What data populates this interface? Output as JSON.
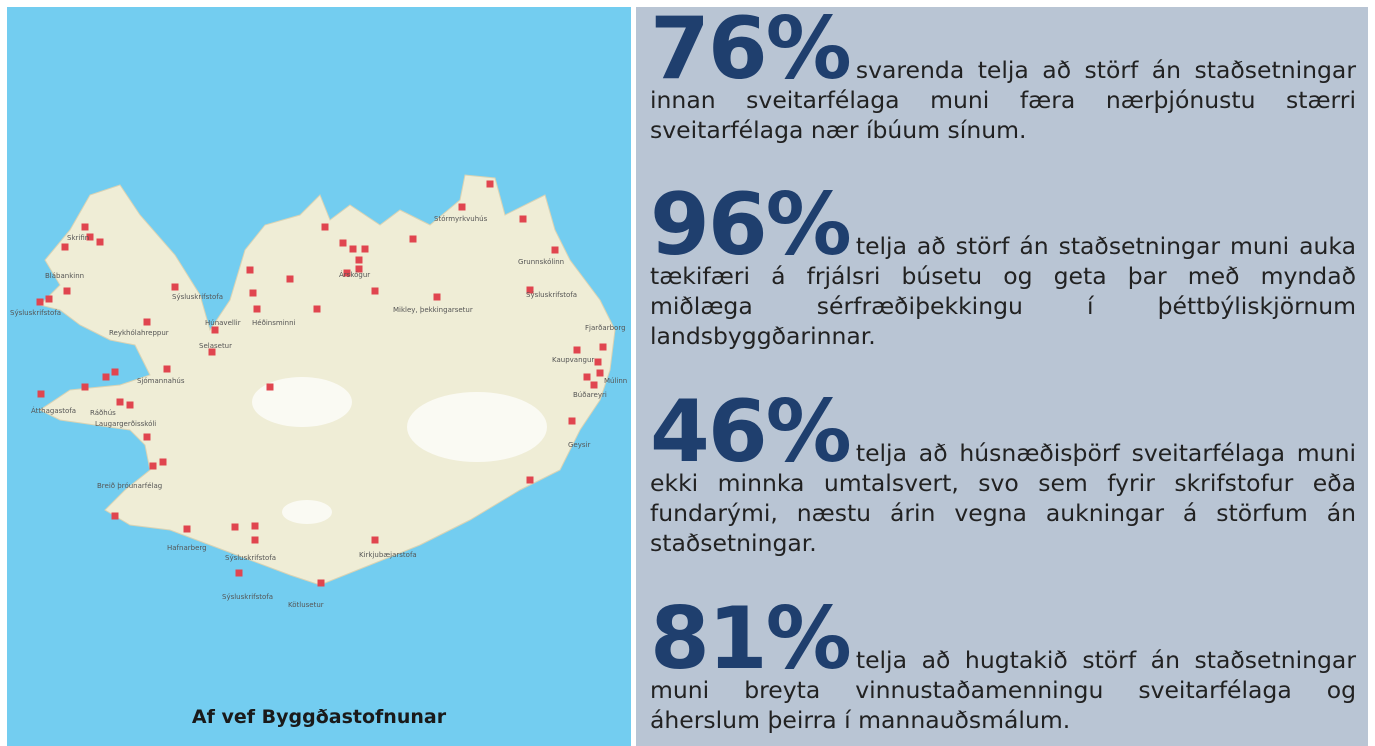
{
  "map": {
    "caption": "Af vef Byggðastofnunar",
    "labels": [
      "Skrifin",
      "Blábankinn",
      "Sýsluskrifstofa",
      "Reykhólahreppur",
      "Sýsluskrifstofa",
      "Selasetur",
      "Húnavellir",
      "Héðinsminni",
      "Árskógur",
      "Mikley, þekkingarsetur",
      "Stórmyrkvuhús",
      "Grunnskólinn",
      "Sýsluskrifstofa",
      "Fjarðarborg",
      "Kaupvangur",
      "Múlinn",
      "Búðareyri",
      "Geysir",
      "Ráðhús",
      "Sjómannahús",
      "Átthagastofa",
      "Laugargerðisskóli",
      "Breið þróunarfélag",
      "Hafnarberg",
      "Sýsluskrifstofa",
      "Kirkjubæjarstofa",
      "Sýsluskrifstofa",
      "Kötlusetur"
    ]
  },
  "stats": [
    {
      "figure": "76%",
      "text": "svarenda telja að störf án staðsetningar innan sveitarfélaga muni færa nærþjónustu stærri sveitarfélaga nær íbúum sínum."
    },
    {
      "figure": "96%",
      "text": "telja að störf án staðsetningar muni auka tækifæri á frjálsri búsetu og geta þar með myndað miðlæga sérfræðiþekkingu í þéttbýliskjörnum landsbyggðarinnar."
    },
    {
      "figure": "46%",
      "text": "telja að húsnæðisþörf sveitarfélaga muni ekki minnka umtalsvert, svo sem fyrir skrifstofur eða fundarými, næstu árin vegna aukningar á störfum án staðsetningar."
    },
    {
      "figure": "81%",
      "text": "telja að hugtakið störf án staðsetningar muni breyta vinnustaðamenningu sveitarfélaga og áherslum þeirra í mannauðsmálum."
    }
  ]
}
